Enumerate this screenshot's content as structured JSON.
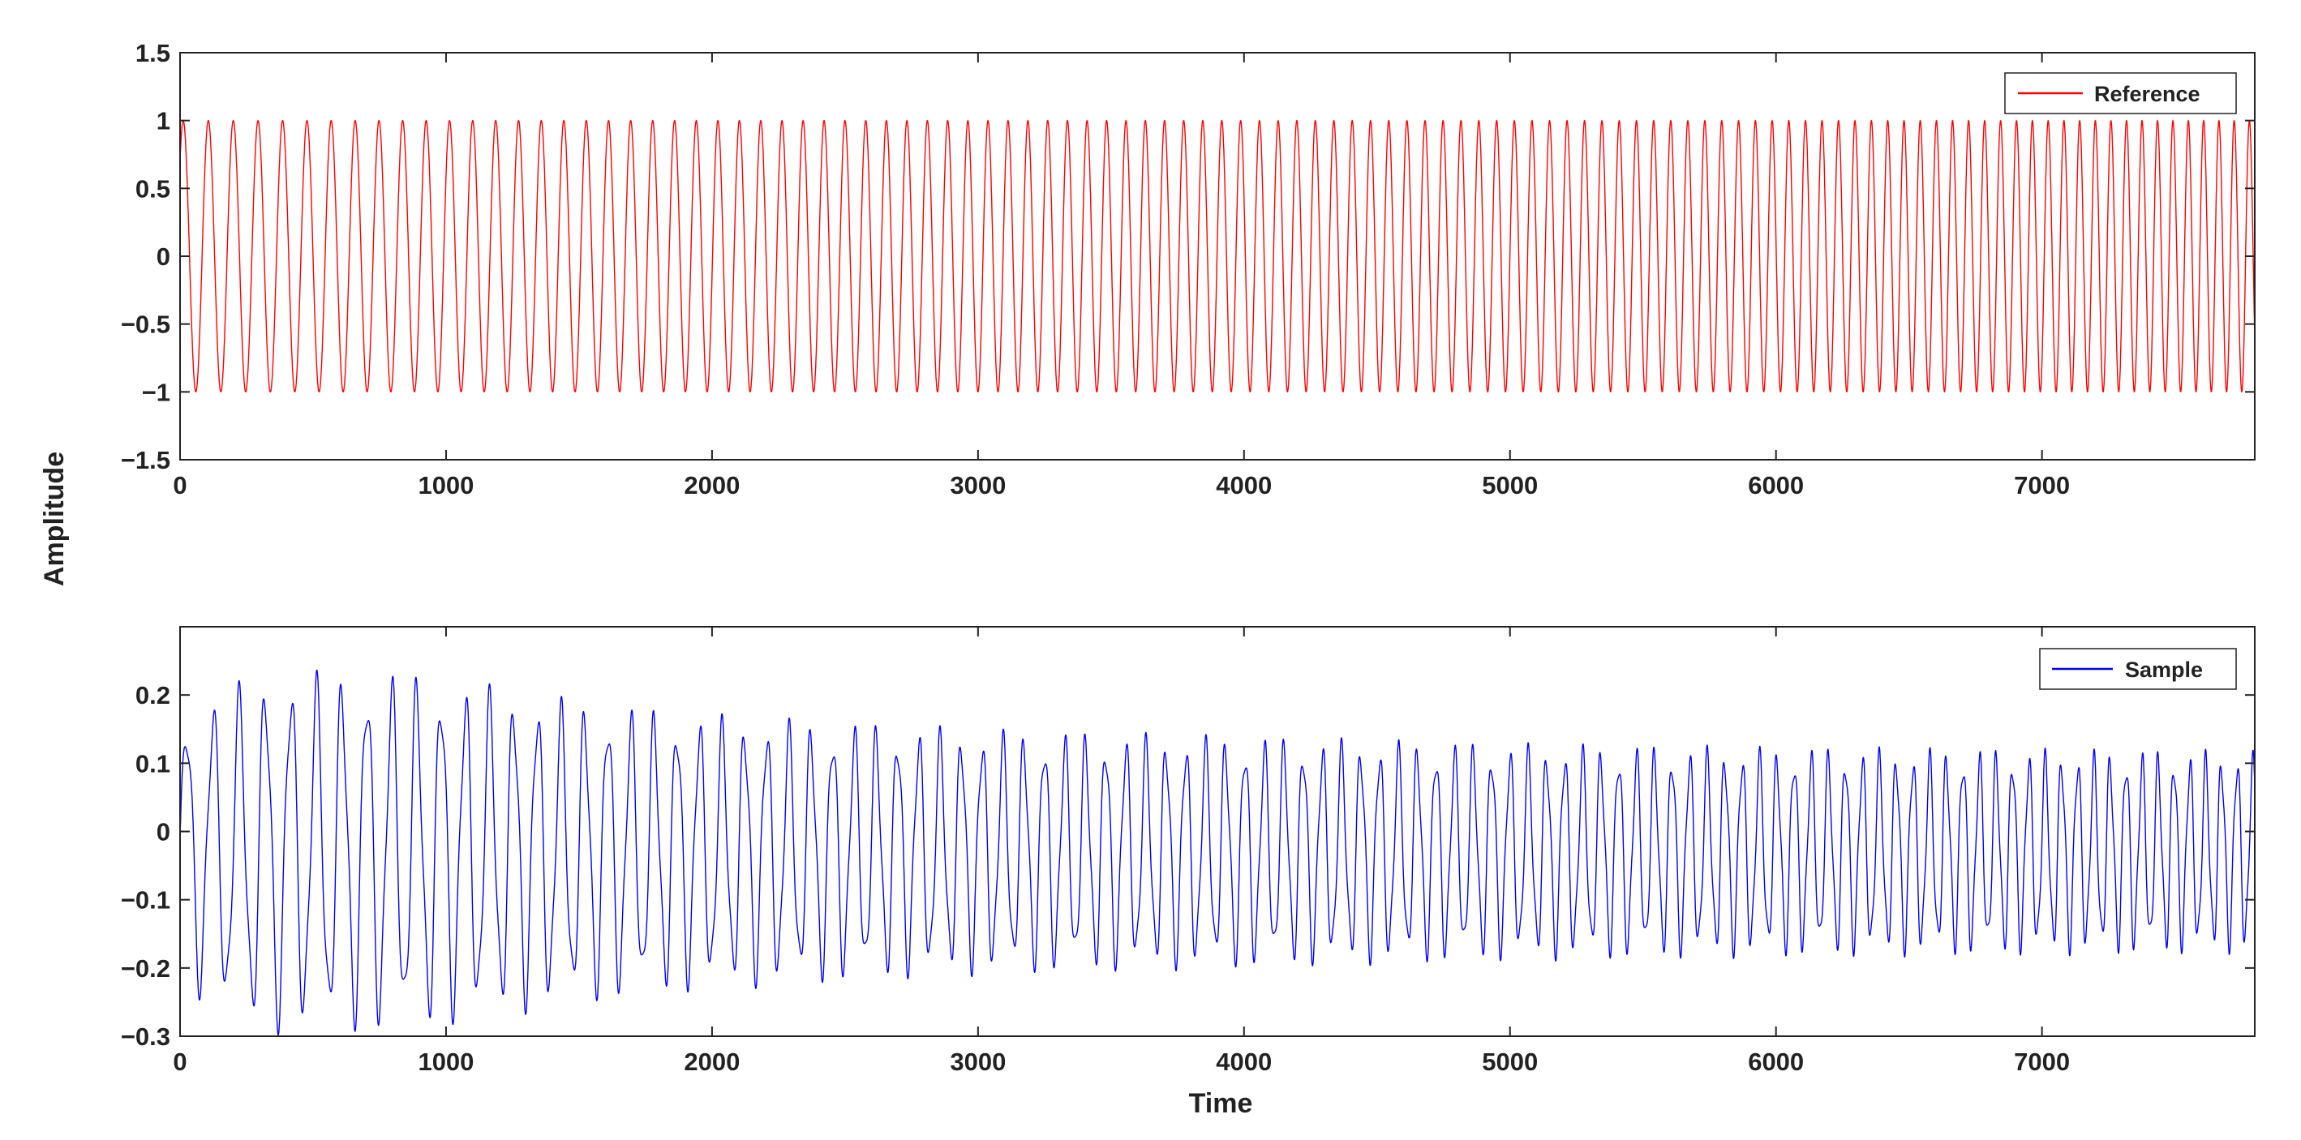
{
  "figure": {
    "shared_ylabel": "Amplitude"
  },
  "chart_data": [
    {
      "type": "line",
      "title": "",
      "xlabel": "",
      "ylabel": "Amplitude",
      "xlim": [
        0,
        7800
      ],
      "ylim": [
        -1.5,
        1.5
      ],
      "xticks": [
        0,
        1000,
        2000,
        3000,
        4000,
        5000,
        6000,
        7000
      ],
      "xtick_labels": [
        "0",
        "1000",
        "2000",
        "3000",
        "4000",
        "5000",
        "6000",
        "7000"
      ],
      "yticks": [
        1.5,
        1,
        0.5,
        0,
        -0.5,
        -1,
        -1.5
      ],
      "ytick_labels": [
        "1.5",
        "1",
        "0.5",
        "0",
        "−0.5",
        "−1",
        "−1.5"
      ],
      "grid": false,
      "legend_position": "top-right",
      "series": [
        {
          "name": "Reference",
          "color": "#ff0000",
          "description": "linear chirp, amplitude ~1, frequency increasing with time",
          "amplitude": 1.0,
          "start_period": 95,
          "freq_slope_per_sample_sq": 4.5e-07,
          "initial_phase_deg": 45
        }
      ]
    },
    {
      "type": "line",
      "title": "",
      "xlabel": "Time",
      "ylabel": "Amplitude",
      "xlim": [
        0,
        7800
      ],
      "ylim": [
        -0.3,
        0.3
      ],
      "xticks": [
        0,
        1000,
        2000,
        3000,
        4000,
        5000,
        6000,
        7000
      ],
      "xtick_labels": [
        "0",
        "1000",
        "2000",
        "3000",
        "4000",
        "5000",
        "6000",
        "7000"
      ],
      "yticks": [
        0.2,
        0.1,
        0,
        -0.1,
        -0.2,
        -0.3
      ],
      "ytick_labels": [
        "0.2",
        "0.1",
        "0",
        "−0.1",
        "−0.2",
        "−0.3"
      ],
      "grid": false,
      "legend_position": "top-right",
      "series": [
        {
          "name": "Sample",
          "color": "#0000ff",
          "description": "measured response to the chirp, offset slightly below zero, decaying envelope",
          "offset": -0.03,
          "envelope_points": [
            [
              0,
              0.19
            ],
            [
              300,
              0.25
            ],
            [
              800,
              0.25
            ],
            [
              1000,
              0.24
            ],
            [
              1500,
              0.21
            ],
            [
              2000,
              0.19
            ],
            [
              3000,
              0.17
            ],
            [
              4000,
              0.16
            ],
            [
              5000,
              0.15
            ],
            [
              6000,
              0.145
            ],
            [
              7800,
              0.14
            ]
          ]
        }
      ]
    }
  ]
}
